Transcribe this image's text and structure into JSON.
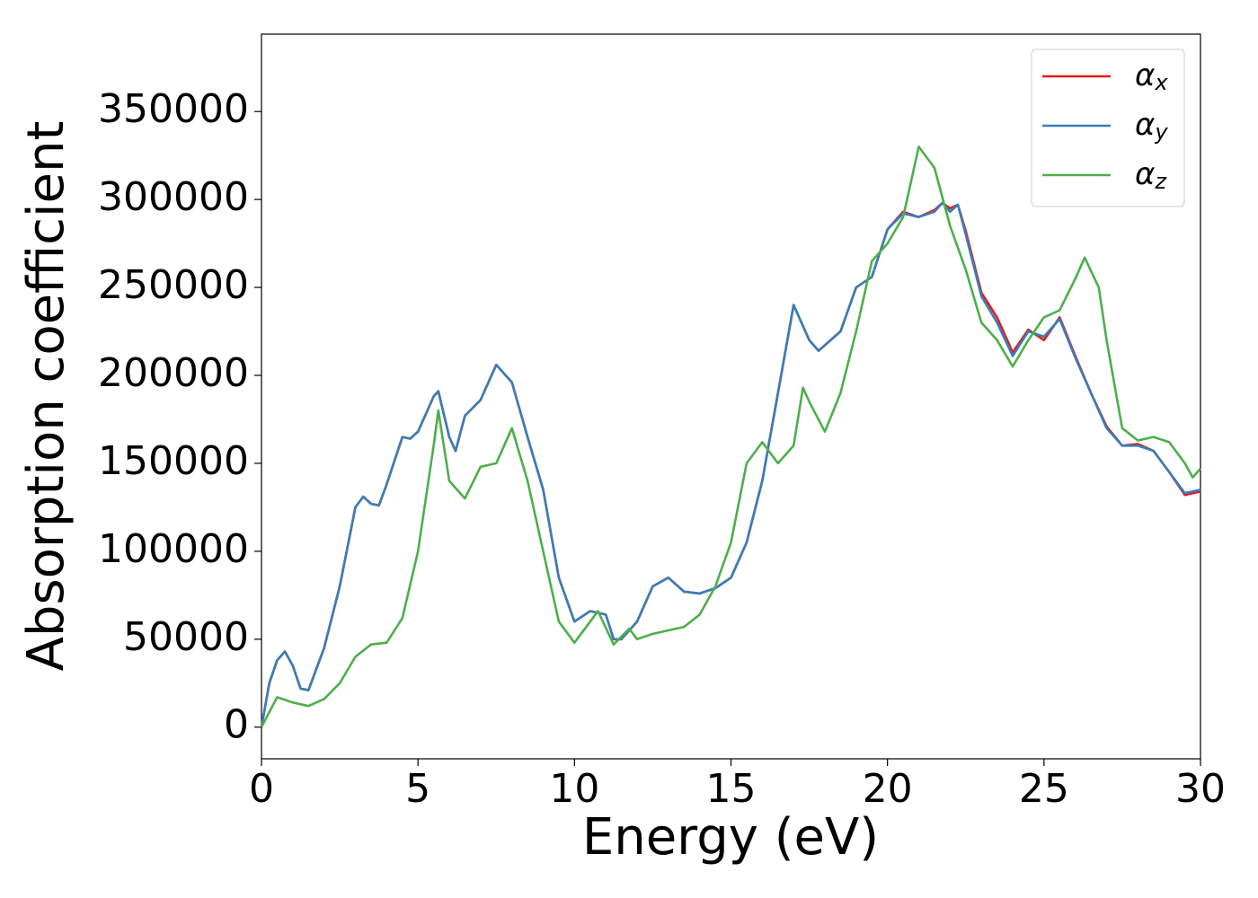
{
  "chart_data": {
    "type": "line",
    "xlabel": "Energy (eV)",
    "ylabel": "Absorption coefficient",
    "xlim": [
      0,
      30
    ],
    "xticks": [
      0,
      5,
      10,
      15,
      20,
      25,
      30
    ],
    "ylim": [
      -18000,
      394000
    ],
    "yticks": [
      0,
      50000,
      100000,
      150000,
      200000,
      250000,
      300000,
      350000
    ],
    "legend": "upper right",
    "grid": false,
    "series": [
      {
        "name": "αx",
        "color": "#e41a1c",
        "x": [
          0,
          0.25,
          0.5,
          0.75,
          1,
          1.25,
          1.5,
          2,
          2.5,
          3,
          3.25,
          3.5,
          3.75,
          4,
          4.5,
          4.75,
          5,
          5.25,
          5.5,
          5.65,
          6,
          6.2,
          6.5,
          7,
          7.5,
          8,
          8.5,
          9,
          9.5,
          10,
          10.5,
          11,
          11.25,
          11.5,
          12,
          12.5,
          13,
          13.5,
          14,
          14.5,
          15,
          15.5,
          16,
          16.5,
          17,
          17.5,
          17.8,
          18.5,
          19,
          19.5,
          20,
          20.5,
          21,
          21.5,
          21.75,
          22,
          22.25,
          22.5,
          23,
          23.5,
          24,
          24.5,
          25,
          25.5,
          26,
          26.5,
          27,
          27.5,
          28,
          28.5,
          29,
          29.5,
          30
        ],
        "values": [
          0,
          25000,
          38000,
          43000,
          35000,
          22000,
          21000,
          45000,
          80000,
          125000,
          131000,
          127000,
          126000,
          138000,
          165000,
          164000,
          168000,
          178000,
          188000,
          191000,
          165000,
          157000,
          177000,
          186000,
          206000,
          196000,
          165000,
          135000,
          85000,
          60000,
          66000,
          64000,
          50000,
          50000,
          60000,
          80000,
          85000,
          77000,
          76000,
          79000,
          85000,
          105000,
          140000,
          190000,
          240000,
          220000,
          214000,
          225000,
          250000,
          256000,
          283000,
          293000,
          290000,
          294000,
          298000,
          295000,
          297000,
          282000,
          247000,
          233000,
          213000,
          226000,
          220000,
          233000,
          211000,
          190000,
          171000,
          160000,
          161000,
          157000,
          145000,
          132000,
          134000
        ]
      },
      {
        "name": "αy",
        "color": "#377eb8",
        "x": [
          0,
          0.25,
          0.5,
          0.75,
          1,
          1.25,
          1.5,
          2,
          2.5,
          3,
          3.25,
          3.5,
          3.75,
          4,
          4.5,
          4.75,
          5,
          5.25,
          5.5,
          5.65,
          6,
          6.2,
          6.5,
          7,
          7.5,
          8,
          8.5,
          9,
          9.5,
          10,
          10.5,
          11,
          11.25,
          11.5,
          12,
          12.5,
          13,
          13.5,
          14,
          14.5,
          15,
          15.5,
          16,
          16.5,
          17,
          17.5,
          17.8,
          18.5,
          19,
          19.5,
          20,
          20.5,
          21,
          21.5,
          21.75,
          22,
          22.25,
          22.5,
          23,
          23.5,
          24,
          24.5,
          25,
          25.5,
          26,
          26.5,
          27,
          27.5,
          28,
          28.5,
          29,
          29.5,
          30
        ],
        "values": [
          0,
          25000,
          38000,
          43000,
          35000,
          22000,
          21000,
          45000,
          80000,
          125000,
          131000,
          127000,
          126000,
          138000,
          165000,
          164000,
          168000,
          178000,
          188000,
          191000,
          165000,
          157000,
          177000,
          186000,
          206000,
          196000,
          165000,
          135000,
          85000,
          60000,
          66000,
          64000,
          50000,
          50000,
          60000,
          80000,
          85000,
          77000,
          76000,
          79000,
          85000,
          105000,
          140000,
          190000,
          240000,
          220000,
          214000,
          225000,
          250000,
          256000,
          283000,
          292000,
          290000,
          293000,
          298000,
          293000,
          297000,
          280000,
          245000,
          230000,
          211000,
          225000,
          222000,
          232000,
          210000,
          190000,
          170000,
          160000,
          160000,
          157000,
          145000,
          133000,
          135000
        ]
      },
      {
        "name": "αz",
        "color": "#4daf4a",
        "x": [
          0,
          0.5,
          1,
          1.5,
          2,
          2.5,
          3,
          3.5,
          4,
          4.5,
          5,
          5.5,
          5.65,
          6,
          6.5,
          7,
          7.5,
          8,
          8.5,
          9,
          9.5,
          10,
          10.5,
          10.75,
          11.25,
          11.75,
          12,
          12.5,
          13,
          13.5,
          14,
          14.5,
          15,
          15.5,
          16,
          16.5,
          17,
          17.3,
          17.5,
          18,
          18.5,
          19,
          19.5,
          20,
          20.5,
          21,
          21.5,
          22,
          22.5,
          23,
          23.5,
          24,
          24.5,
          25,
          25.5,
          26,
          26.3,
          26.75,
          27,
          27.5,
          28,
          28.5,
          29,
          29.5,
          29.75,
          30
        ],
        "values": [
          0,
          17000,
          14000,
          12000,
          16000,
          25000,
          40000,
          47000,
          48000,
          62000,
          100000,
          160000,
          180000,
          140000,
          130000,
          148000,
          150000,
          170000,
          140000,
          100000,
          60000,
          48000,
          60000,
          66000,
          47000,
          56000,
          50000,
          53000,
          55000,
          57000,
          64000,
          80000,
          105000,
          150000,
          162000,
          150000,
          160000,
          193000,
          185000,
          168000,
          190000,
          225000,
          265000,
          275000,
          290000,
          330000,
          318000,
          285000,
          260000,
          230000,
          220000,
          205000,
          220000,
          233000,
          237000,
          255000,
          267000,
          250000,
          220000,
          170000,
          163000,
          165000,
          162000,
          150000,
          142000,
          147000
        ]
      }
    ]
  }
}
